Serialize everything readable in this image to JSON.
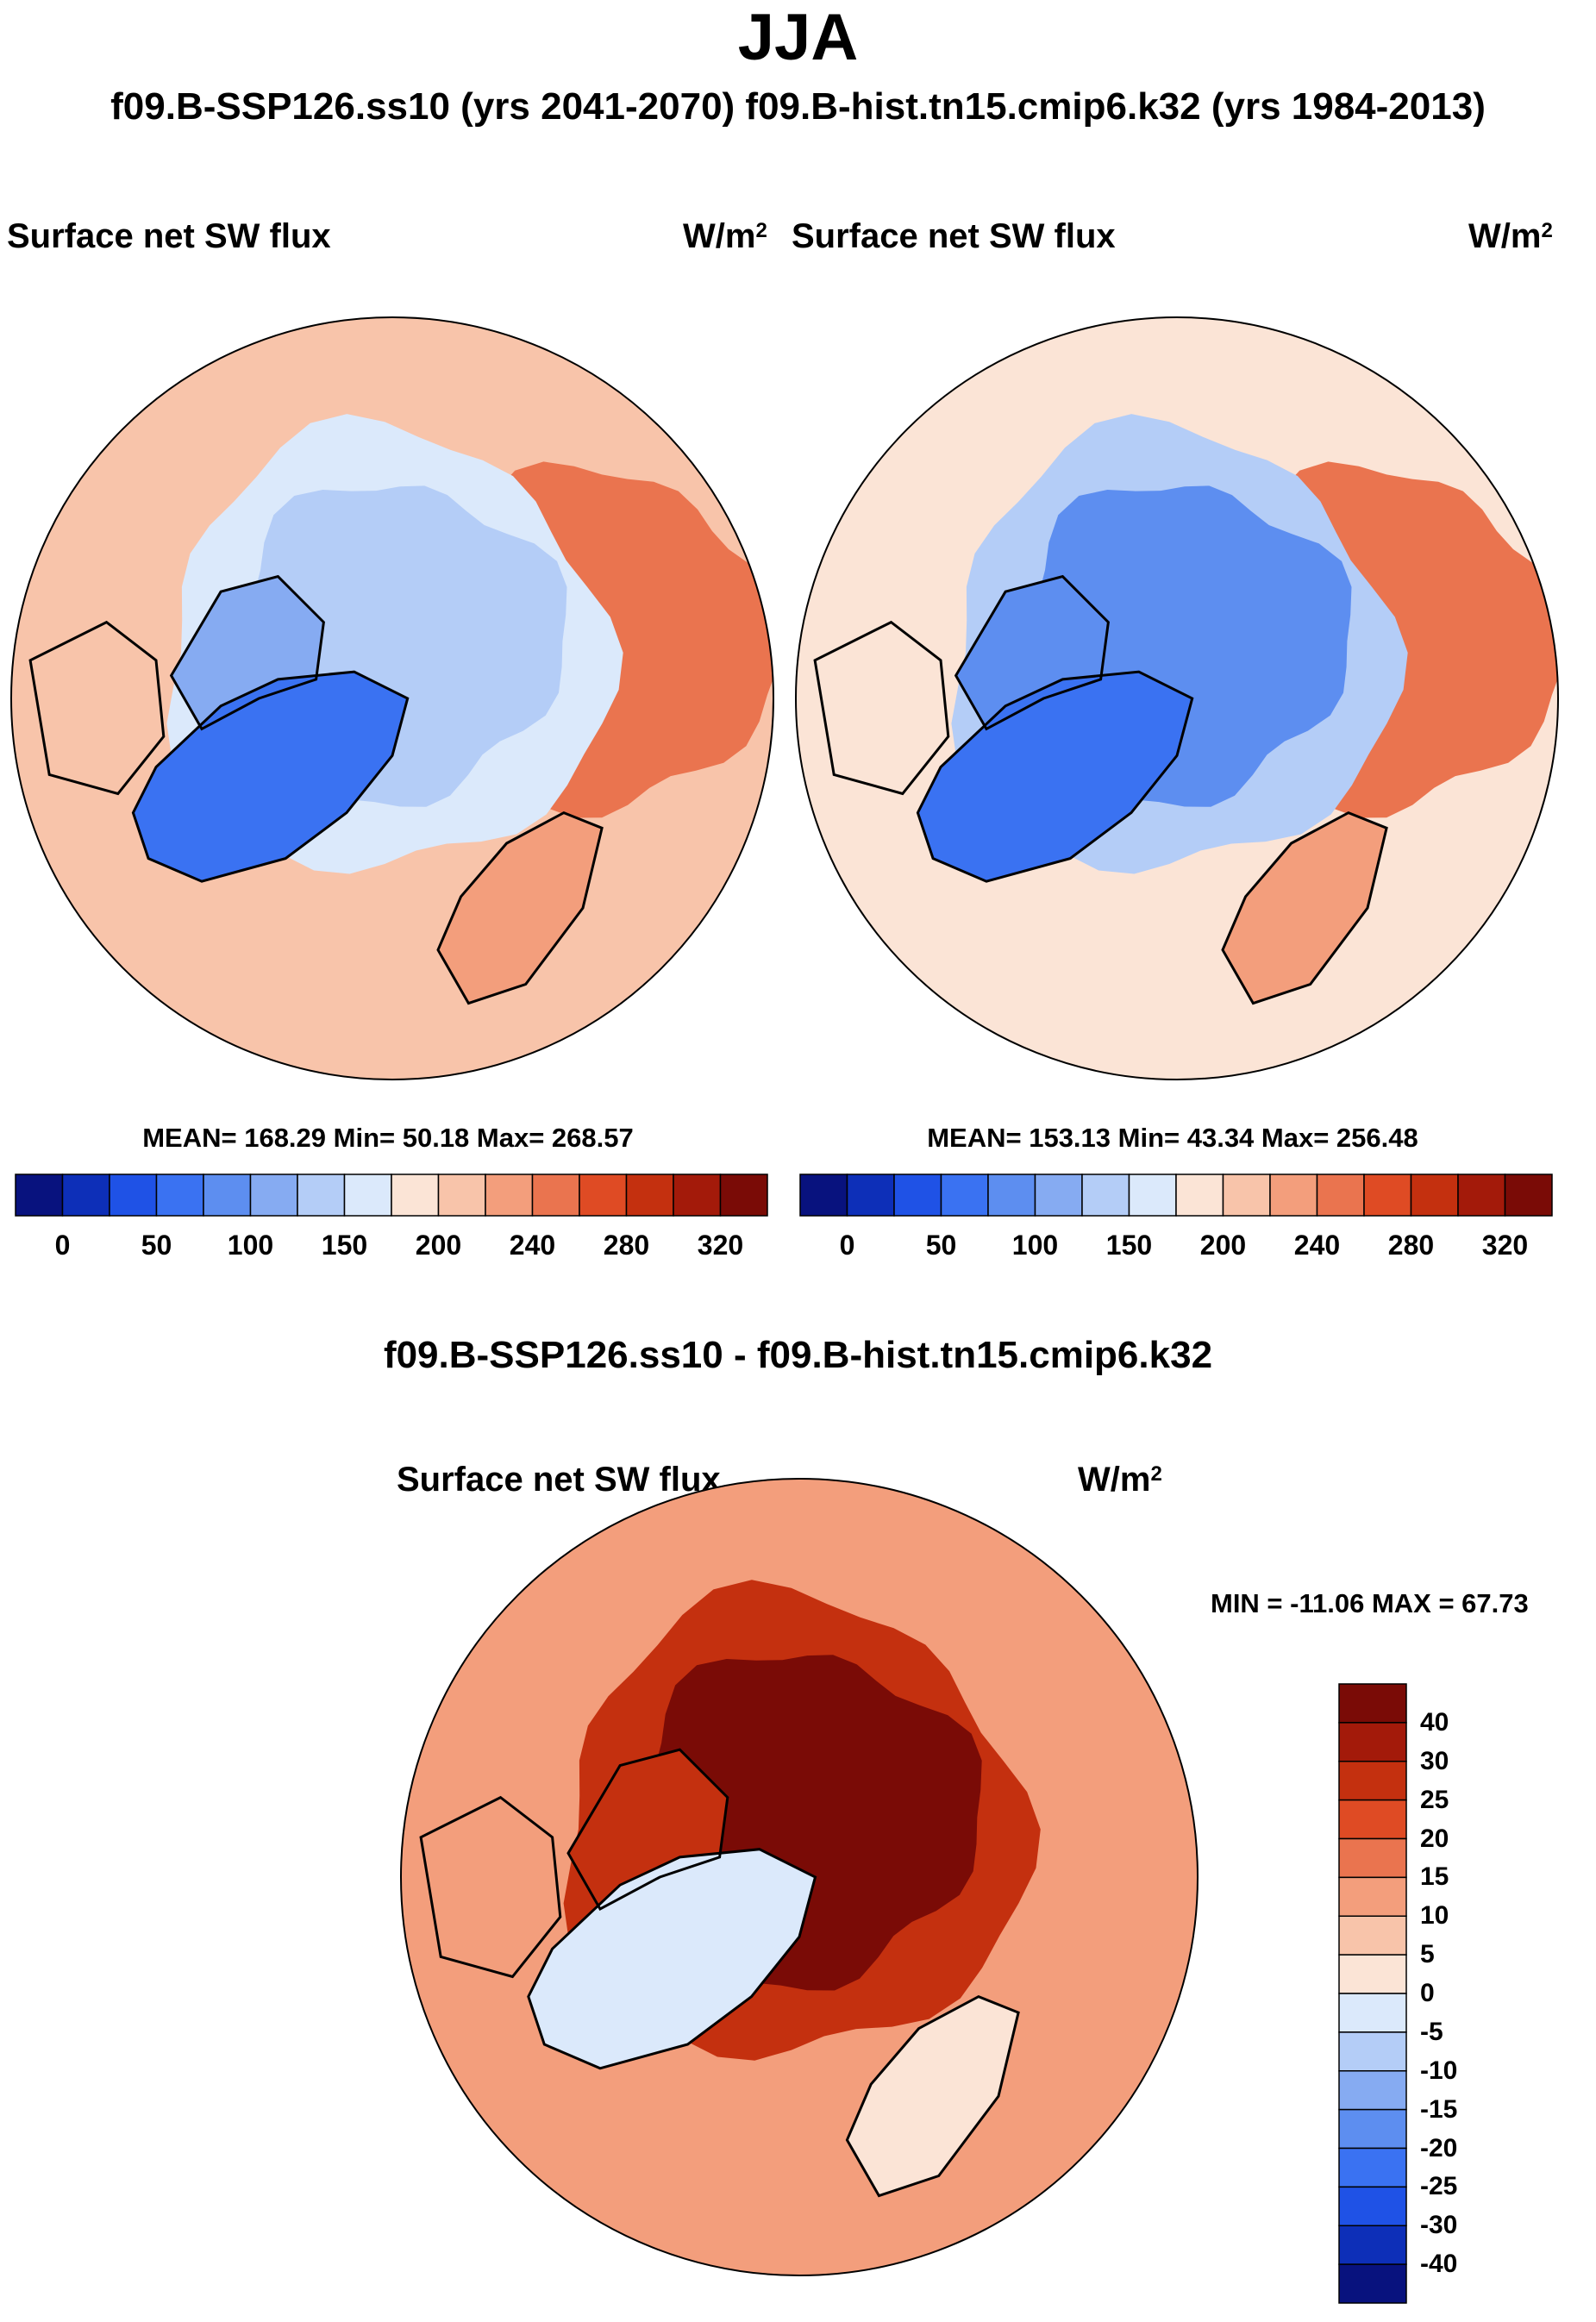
{
  "figure": {
    "season": "JJA",
    "cases_header": "f09.B-SSP126.ss10 (yrs 2041-2070)  f09.B-hist.tn15.cmip6.k32 (yrs 1984-2013)",
    "diff_header": "f09.B-SSP126.ss10 - f09.B-hist.tn15.cmip6.k32"
  },
  "chart_data": [
    {
      "type": "heatmap",
      "projection": "north-polar-stereographic",
      "case": "f09.B-SSP126.ss10 (yrs 2041-2070)",
      "title": "Surface net SW flux",
      "units": "W/m",
      "units_sup": "2",
      "stats": {
        "text": "MEAN= 168.29  Min=  50.18  Max= 268.57",
        "mean": 168.29,
        "min": 50.18,
        "max": 268.57
      },
      "colorbar": {
        "orientation": "horizontal",
        "tick_labels": [
          "0",
          "50",
          "100",
          "150",
          "200",
          "240",
          "280",
          "320"
        ],
        "levels": [
          0,
          25,
          50,
          75,
          100,
          125,
          150,
          175,
          200,
          220,
          240,
          260,
          280,
          300,
          320
        ],
        "colors": [
          "#08127e",
          "#0d2fb8",
          "#1f52e6",
          "#3a72f2",
          "#5d8ef0",
          "#86abf2",
          "#b4cdf7",
          "#dbe9fb",
          "#fbe4d6",
          "#f8c4aa",
          "#f39e7c",
          "#ea744f",
          "#df4b24",
          "#c4300f",
          "#a31a0a",
          "#7a0b06"
        ]
      },
      "regions": {
        "central_arctic": 130,
        "greenland": 58,
        "canadian_archipelago": 105,
        "europe_land": 225,
        "subarctic_ocean": 200,
        "north_pacific": 250
      }
    },
    {
      "type": "heatmap",
      "projection": "north-polar-stereographic",
      "case": "f09.B-hist.tn15.cmip6.k32 (yrs 1984-2013)",
      "title": "Surface net SW flux",
      "units": "W/m",
      "units_sup": "2",
      "stats": {
        "text": "MEAN= 153.13  Min=  43.34  Max= 256.48",
        "mean": 153.13,
        "min": 43.34,
        "max": 256.48
      },
      "colorbar": {
        "orientation": "horizontal",
        "tick_labels": [
          "0",
          "50",
          "100",
          "150",
          "200",
          "240",
          "280",
          "320"
        ],
        "levels": [
          0,
          25,
          50,
          75,
          100,
          125,
          150,
          175,
          200,
          220,
          240,
          260,
          280,
          300,
          320
        ],
        "colors": [
          "#08127e",
          "#0d2fb8",
          "#1f52e6",
          "#3a72f2",
          "#5d8ef0",
          "#86abf2",
          "#b4cdf7",
          "#dbe9fb",
          "#fbe4d6",
          "#f8c4aa",
          "#f39e7c",
          "#ea744f",
          "#df4b24",
          "#c4300f",
          "#a31a0a",
          "#7a0b06"
        ]
      },
      "regions": {
        "central_arctic": 95,
        "greenland": 50,
        "canadian_archipelago": 90,
        "europe_land": 220,
        "subarctic_ocean": 190,
        "north_pacific": 245
      }
    },
    {
      "type": "heatmap",
      "projection": "north-polar-stereographic",
      "case": "f09.B-SSP126.ss10 - f09.B-hist.tn15.cmip6.k32",
      "title": "Surface net SW flux",
      "units": "W/m",
      "units_sup": "2",
      "stats": {
        "text": "MIN = -11.06 MAX =  67.73",
        "min": -11.06,
        "max": 67.73
      },
      "colorbar": {
        "orientation": "vertical",
        "tick_labels": [
          "40",
          "30",
          "25",
          "20",
          "15",
          "10",
          "5",
          "0",
          "-5",
          "-10",
          "-15",
          "-20",
          "-25",
          "-30",
          "-40"
        ],
        "levels": [
          -40,
          -30,
          -25,
          -20,
          -15,
          -10,
          -5,
          0,
          5,
          10,
          15,
          20,
          25,
          30,
          40
        ],
        "colors": [
          "#08127e",
          "#0d2fb8",
          "#1f52e6",
          "#3a72f2",
          "#5d8ef0",
          "#86abf2",
          "#b4cdf7",
          "#dbe9fb",
          "#fbe4d6",
          "#f8c4aa",
          "#f39e7c",
          "#ea744f",
          "#df4b24",
          "#c4300f",
          "#a31a0a",
          "#7a0b06"
        ]
      },
      "regions": {
        "central_arctic": 42,
        "greenland": -3,
        "canadian_archipelago": 28,
        "europe_land": 4,
        "subarctic_ocean": 12,
        "north_pacific": 14
      }
    }
  ]
}
